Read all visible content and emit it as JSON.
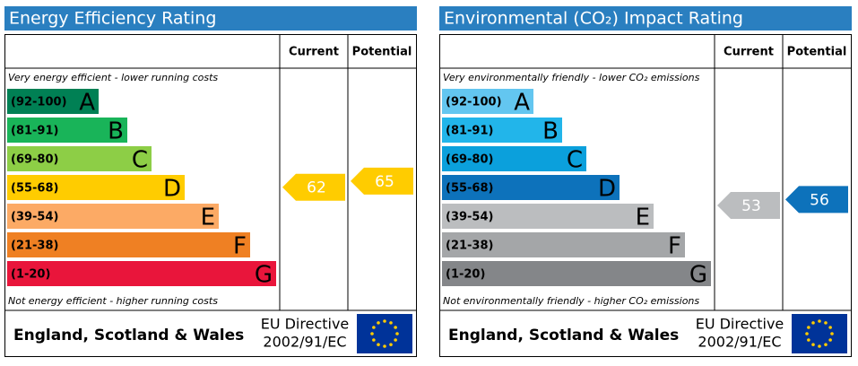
{
  "chart_data": [
    {
      "type": "epc",
      "title": "Energy Efficiency Rating",
      "column_headers": [
        "Current",
        "Potential"
      ],
      "top_note": "Very energy efficient - lower running costs",
      "bottom_note": "Not energy efficient - higher running costs",
      "bands": [
        {
          "label": "(92-100)",
          "letter": "A",
          "color": "#008054"
        },
        {
          "label": "(81-91)",
          "letter": "B",
          "color": "#19b459"
        },
        {
          "label": "(69-80)",
          "letter": "C",
          "color": "#8dce46"
        },
        {
          "label": "(55-68)",
          "letter": "D",
          "color": "#ffcc00"
        },
        {
          "label": "(39-54)",
          "letter": "E",
          "color": "#fcaa65"
        },
        {
          "label": "(21-38)",
          "letter": "F",
          "color": "#ef8023"
        },
        {
          "label": "(1-20)",
          "letter": "G",
          "color": "#e9153b"
        }
      ],
      "current": 62,
      "potential": 65,
      "footer": {
        "region": "England, Scotland & Wales",
        "directive": [
          "EU Directive",
          "2002/91/EC"
        ]
      }
    },
    {
      "type": "epc",
      "title": "Environmental (CO₂) Impact Rating",
      "column_headers": [
        "Current",
        "Potential"
      ],
      "top_note": "Very environmentally friendly - lower CO₂ emissions",
      "bottom_note": "Not environmentally friendly - higher CO₂ emissions",
      "bands": [
        {
          "label": "(92-100)",
          "letter": "A",
          "color": "#63c6f0"
        },
        {
          "label": "(81-91)",
          "letter": "B",
          "color": "#22b5ea"
        },
        {
          "label": "(69-80)",
          "letter": "C",
          "color": "#0ba0dc"
        },
        {
          "label": "(55-68)",
          "letter": "D",
          "color": "#0d72bb"
        },
        {
          "label": "(39-54)",
          "letter": "E",
          "color": "#bbbdbf"
        },
        {
          "label": "(21-38)",
          "letter": "F",
          "color": "#a4a6a8"
        },
        {
          "label": "(1-20)",
          "letter": "G",
          "color": "#848689"
        }
      ],
      "current": 53,
      "potential": 56,
      "footer": {
        "region": "England, Scotland & Wales",
        "directive": [
          "EU Directive",
          "2002/91/EC"
        ]
      }
    }
  ]
}
